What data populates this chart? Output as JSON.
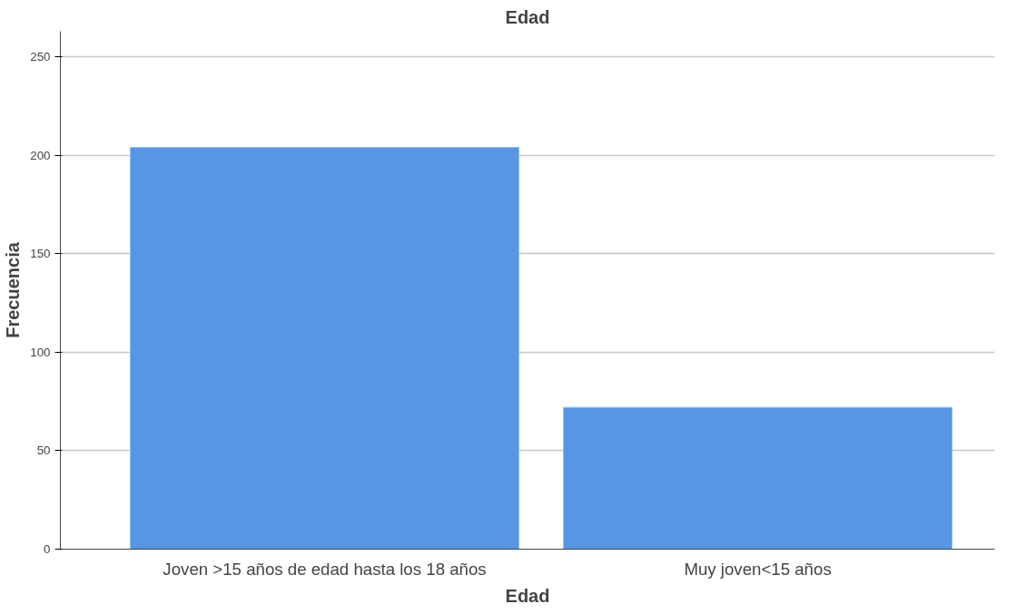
{
  "chart_data": {
    "type": "bar",
    "title": "Edad",
    "xlabel": "Edad",
    "ylabel": "Frecuencia",
    "categories": [
      "Joven >15 años de edad hasta los 18 años",
      "Muy joven<15 años"
    ],
    "values": [
      204,
      72
    ],
    "color": "#5596e5",
    "ylim": [
      0,
      263
    ],
    "yticks": [
      0,
      50,
      100,
      150,
      200,
      250
    ],
    "grid": "y"
  }
}
